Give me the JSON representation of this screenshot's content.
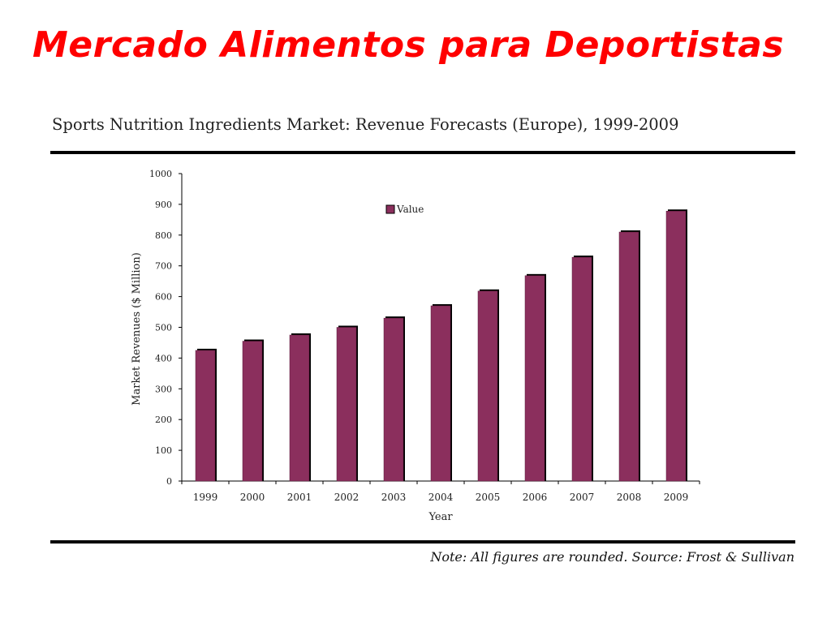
{
  "slide": {
    "title": "Mercado Alimentos para Deportistas"
  },
  "chart_header": {
    "title": "Sports Nutrition Ingredients Market: Revenue Forecasts (Europe), 1999-2009"
  },
  "footer": {
    "note": "Note: All figures are rounded. Source: Frost & Sullivan"
  },
  "colors": {
    "title": "#ff0000",
    "bar": "#8b2f5d",
    "bar_shadow": "#000000",
    "axis": "#000000"
  },
  "chart_data": {
    "type": "bar",
    "title": "Sports Nutrition Ingredients Market: Revenue Forecasts (Europe), 1999-2009",
    "xlabel": "Year",
    "ylabel": "Market Revenues ($ Million)",
    "categories": [
      "1999",
      "2000",
      "2001",
      "2002",
      "2003",
      "2004",
      "2005",
      "2006",
      "2007",
      "2008",
      "2009"
    ],
    "series": [
      {
        "name": "Value",
        "values": [
          425,
          455,
          475,
          500,
          530,
          570,
          618,
          668,
          728,
          810,
          878
        ]
      }
    ],
    "ylim": [
      0,
      1000
    ],
    "yticks": [
      0,
      100,
      200,
      300,
      400,
      500,
      600,
      700,
      800,
      900,
      1000
    ],
    "grid": false,
    "legend_position": "top-center"
  }
}
